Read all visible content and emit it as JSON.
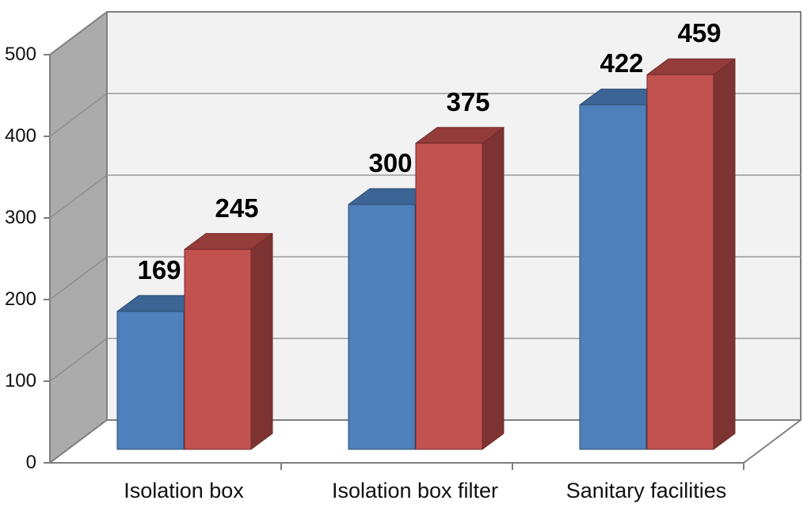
{
  "chart_data": {
    "type": "bar",
    "projection": "3d-clustered-column",
    "title": "",
    "categories": [
      "Isolation box",
      "Isolation box filter",
      "Sanitary facilities"
    ],
    "series": [
      {
        "name": "blue-series",
        "values": [
          169,
          300,
          422
        ],
        "front_color": "#4E80BC",
        "top_color": "#3C6494",
        "edge_color": "#2E4D71"
      },
      {
        "name": "red-series",
        "values": [
          245,
          375,
          459
        ],
        "front_color": "#C25250",
        "top_color": "#943C3A",
        "side_color": "#7C3331",
        "edge_color": "#6E2C2A"
      }
    ],
    "y_ticks": [
      0,
      100,
      200,
      300,
      400,
      500
    ],
    "ylim": [
      0,
      500
    ],
    "xlabel": "",
    "ylabel": "",
    "grid": true,
    "legend_position": "none",
    "data_labels_visible": true,
    "colors": {
      "left_wall": "#ABABAB",
      "back_wall": "#F2F2F2",
      "floor": "#FFFFFF",
      "outline": "#7F7F7F",
      "back_gridline": "#9A9A9A",
      "wall_gridline": "#8F8F8F",
      "text": "#000000"
    }
  }
}
